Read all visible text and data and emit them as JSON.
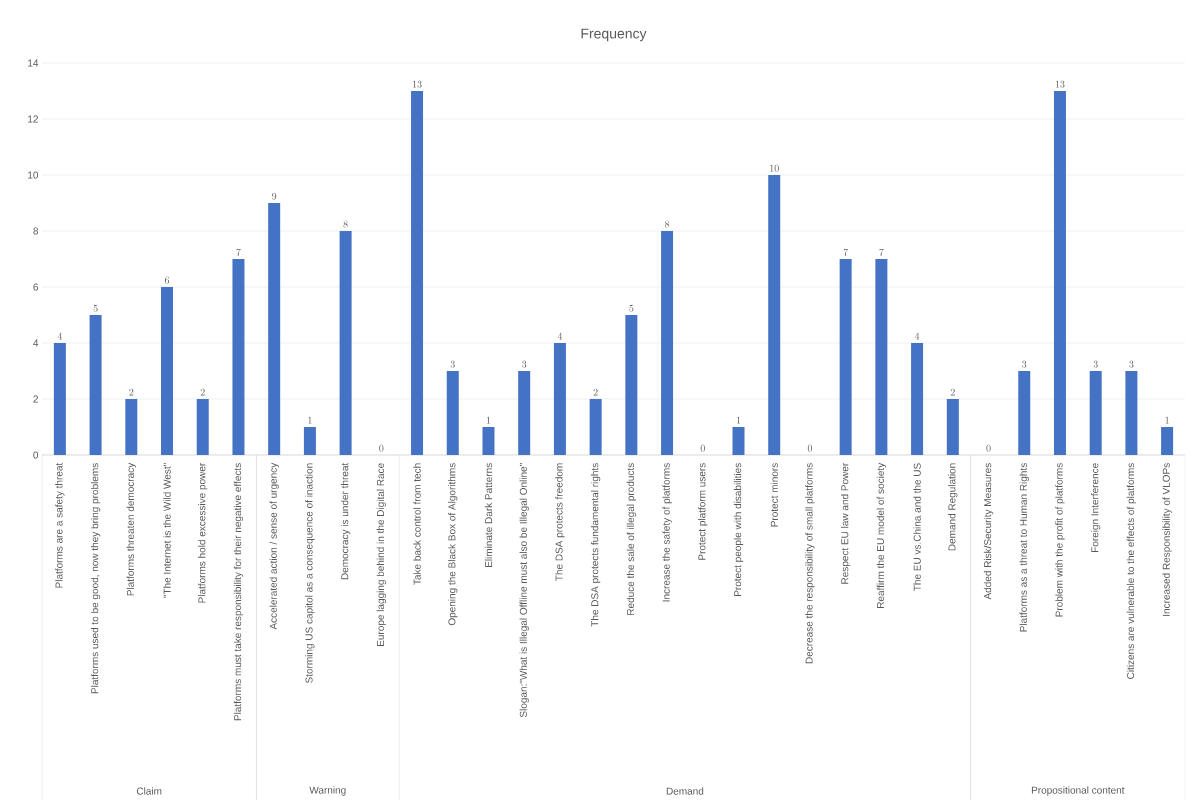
{
  "chart_data": {
    "type": "bar",
    "title": "Frequency",
    "categories": [
      "Platforms are a safety threat",
      "Platforms used to be good, now they bring problems",
      "Platforms threaten democracy",
      "\"The Internet is the Wild West\"",
      "Platforms hold excessive power",
      "Platforms must take responsibility for their negative effects",
      "Accelerated action / sense of urgency",
      "Storming US capitol as a consequence of inaction",
      "Democracy is under threat",
      "Europe lagging behind in the Digital Race",
      "Take back control from tech",
      "Opening the Black Box of Algorithms",
      "Eliminate Dark Patterns",
      "Slogan:\"What is Illegal Offline must also be Illegal Online\"",
      "The DSA protects freedom",
      "The DSA protects fundamental rights",
      "Reduce the sale of illegal products",
      "Increase the safety of platforms",
      "Protect platform users",
      "Protect people with disabilities",
      "Protect minors",
      "Decrease the responsibility of small platforms",
      "Respect EU law and Power",
      "Reaffirm the EU model of society",
      "The EU vs.China and the US",
      "Demand Regulation",
      "Added Risk/Security Measures",
      "Platforms as a threat to Human Rights",
      "Problem with the profit of platforms",
      "Foreign Interference",
      "Citizens are vulnerable to the effects of platforms",
      "Increased Responsibility of VLOPs"
    ],
    "values": [
      4,
      5,
      2,
      6,
      2,
      7,
      9,
      1,
      8,
      0,
      13,
      3,
      1,
      3,
      4,
      2,
      5,
      8,
      0,
      1,
      10,
      0,
      7,
      7,
      4,
      2,
      0,
      3,
      13,
      3,
      3,
      1
    ],
    "color": "#4472c4",
    "ylim": [
      0,
      14
    ],
    "yticks": [
      0,
      2,
      4,
      6,
      8,
      10,
      12,
      14
    ],
    "grid": "y",
    "data_labels": true,
    "annotations": [
      "Claim",
      "Warning",
      "Demand",
      "Propositional content"
    ]
  }
}
